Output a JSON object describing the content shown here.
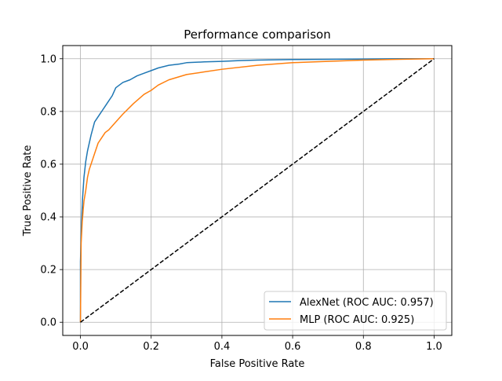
{
  "chart_data": {
    "type": "line",
    "title": "Performance comparison",
    "xlabel": "False Positive Rate",
    "ylabel": "True Positive Rate",
    "xlim": [
      -0.05,
      1.05
    ],
    "ylim": [
      -0.05,
      1.05
    ],
    "grid": true,
    "legend_position": "lower-right",
    "xticks": [
      0.0,
      0.2,
      0.4,
      0.6,
      0.8,
      1.0
    ],
    "xtick_labels": [
      "0.0",
      "0.2",
      "0.4",
      "0.6",
      "0.8",
      "1.0"
    ],
    "yticks": [
      0.0,
      0.2,
      0.4,
      0.6,
      0.8,
      1.0
    ],
    "ytick_labels": [
      "0.0",
      "0.2",
      "0.4",
      "0.6",
      "0.8",
      "1.0"
    ],
    "series": [
      {
        "name": "AlexNet (ROC AUC: 0.957)",
        "color": "#1f77b4",
        "style": "solid",
        "x": [
          0,
          0.0,
          0.003,
          0.006,
          0.01,
          0.015,
          0.02,
          0.03,
          0.04,
          0.05,
          0.06,
          0.07,
          0.08,
          0.09,
          0.1,
          0.11,
          0.12,
          0.14,
          0.16,
          0.18,
          0.2,
          0.22,
          0.25,
          0.28,
          0.3,
          0.35,
          0.4,
          0.45,
          0.5,
          0.6,
          0.7,
          0.8,
          0.9,
          1.0
        ],
        "y": [
          0,
          0.23,
          0.38,
          0.47,
          0.55,
          0.61,
          0.65,
          0.71,
          0.76,
          0.78,
          0.8,
          0.82,
          0.84,
          0.86,
          0.89,
          0.9,
          0.91,
          0.92,
          0.935,
          0.945,
          0.955,
          0.965,
          0.975,
          0.98,
          0.985,
          0.988,
          0.99,
          0.993,
          0.995,
          0.997,
          0.998,
          0.999,
          1.0,
          1.0
        ]
      },
      {
        "name": "MLP (ROC AUC: 0.925)",
        "color": "#ff7f0e",
        "style": "solid",
        "x": [
          0,
          0.002,
          0.005,
          0.008,
          0.01,
          0.015,
          0.02,
          0.025,
          0.03,
          0.04,
          0.05,
          0.06,
          0.07,
          0.08,
          0.1,
          0.12,
          0.15,
          0.18,
          0.2,
          0.22,
          0.25,
          0.3,
          0.35,
          0.4,
          0.5,
          0.6,
          0.7,
          0.8,
          0.9,
          1.0
        ],
        "y": [
          0,
          0.3,
          0.38,
          0.43,
          0.46,
          0.5,
          0.55,
          0.58,
          0.6,
          0.64,
          0.68,
          0.7,
          0.72,
          0.73,
          0.76,
          0.79,
          0.83,
          0.865,
          0.88,
          0.9,
          0.92,
          0.94,
          0.95,
          0.96,
          0.975,
          0.985,
          0.99,
          0.995,
          0.998,
          1.0
        ]
      },
      {
        "name": "",
        "color": "#000000",
        "style": "dashed",
        "x": [
          0,
          1
        ],
        "y": [
          0,
          1
        ]
      }
    ]
  }
}
